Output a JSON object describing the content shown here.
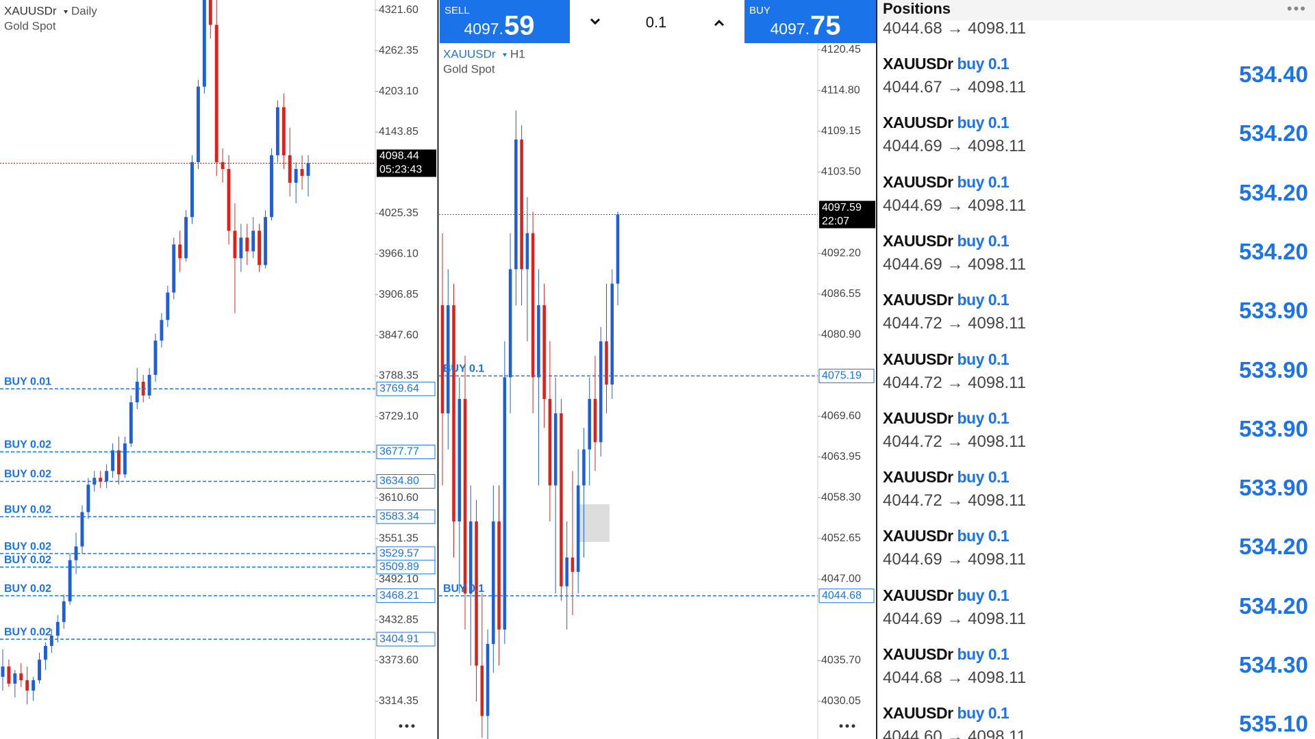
{
  "left_chart": {
    "symbol": "XAUUSDr",
    "timeframe": "Daily",
    "description": "Gold Spot",
    "ylim": [
      3259.4,
      4336.25
    ],
    "yticks": [
      {
        "value": 4321.6,
        "label": "4321.60"
      },
      {
        "value": 4262.35,
        "label": "4262.35"
      },
      {
        "value": 4203.1,
        "label": "4203.10"
      },
      {
        "value": 4143.85,
        "label": "4143.85"
      },
      {
        "value": 4025.35,
        "label": "4025.35"
      },
      {
        "value": 3966.1,
        "label": "3966.10"
      },
      {
        "value": 3906.85,
        "label": "3906.85"
      },
      {
        "value": 3847.6,
        "label": "3847.60"
      },
      {
        "value": 3788.35,
        "label": "3788.35"
      },
      {
        "value": 3729.1,
        "label": "3729.10"
      },
      {
        "value": 3610.6,
        "label": "3610.60"
      },
      {
        "value": 3551.35,
        "label": "3551.35"
      },
      {
        "value": 3492.1,
        "label": "3492.10"
      },
      {
        "value": 3432.85,
        "label": "3432.85"
      },
      {
        "value": 3373.6,
        "label": "3373.60"
      },
      {
        "value": 3314.35,
        "label": "3314.35"
      }
    ],
    "current": {
      "price": 4098.44,
      "time": "05:23:43"
    },
    "orders": [
      {
        "label": "BUY 0.01",
        "price": 3769.64
      },
      {
        "label": "BUY 0.02",
        "price": 3677.77
      },
      {
        "label": "BUY 0.02",
        "price": 3634.8,
        "price_label": "3634.80"
      },
      {
        "label": "BUY 0.02",
        "price": 3583.34
      },
      {
        "label": "BUY 0.02",
        "price": 3529.57
      },
      {
        "label": "BUY 0.02",
        "price": 3509.89
      },
      {
        "label": "BUY 0.02",
        "price": 3468.21
      },
      {
        "label": "BUY 0.02",
        "price": 3404.91
      }
    ],
    "candles": [
      [
        3350,
        3390,
        3330,
        3365
      ],
      [
        3365,
        3375,
        3335,
        3340
      ],
      [
        3340,
        3360,
        3320,
        3355
      ],
      [
        3355,
        3370,
        3335,
        3345
      ],
      [
        3345,
        3365,
        3310,
        3330
      ],
      [
        3330,
        3350,
        3315,
        3345
      ],
      [
        3345,
        3385,
        3340,
        3375
      ],
      [
        3375,
        3400,
        3360,
        3395
      ],
      [
        3395,
        3420,
        3385,
        3410
      ],
      [
        3410,
        3440,
        3400,
        3430
      ],
      [
        3430,
        3470,
        3420,
        3460
      ],
      [
        3460,
        3530,
        3455,
        3520
      ],
      [
        3520,
        3560,
        3500,
        3540
      ],
      [
        3540,
        3600,
        3530,
        3590
      ],
      [
        3590,
        3640,
        3580,
        3630
      ],
      [
        3630,
        3650,
        3620,
        3640
      ],
      [
        3640,
        3650,
        3625,
        3635
      ],
      [
        3635,
        3660,
        3625,
        3650
      ],
      [
        3650,
        3690,
        3640,
        3680
      ],
      [
        3680,
        3700,
        3630,
        3645
      ],
      [
        3645,
        3700,
        3640,
        3690
      ],
      [
        3690,
        3760,
        3685,
        3750
      ],
      [
        3750,
        3800,
        3740,
        3780
      ],
      [
        3780,
        3790,
        3750,
        3760
      ],
      [
        3760,
        3800,
        3755,
        3790
      ],
      [
        3790,
        3850,
        3780,
        3840
      ],
      [
        3840,
        3880,
        3830,
        3870
      ],
      [
        3870,
        3920,
        3860,
        3910
      ],
      [
        3910,
        3990,
        3900,
        3980
      ],
      [
        3980,
        4000,
        3940,
        3960
      ],
      [
        3960,
        4030,
        3955,
        4020
      ],
      [
        4020,
        4110,
        4010,
        4100
      ],
      [
        4100,
        4220,
        4090,
        4210
      ],
      [
        4210,
        4360,
        4200,
        4340
      ],
      [
        4340,
        4380,
        4280,
        4300
      ],
      [
        4300,
        4340,
        4080,
        4100
      ],
      [
        4100,
        4120,
        4070,
        4090
      ],
      [
        4090,
        4110,
        3980,
        4000
      ],
      [
        4000,
        4040,
        3880,
        3960
      ],
      [
        3960,
        4010,
        3940,
        3990
      ],
      [
        3990,
        4010,
        3950,
        3970
      ],
      [
        3970,
        4020,
        3960,
        4000
      ],
      [
        4000,
        4010,
        3940,
        3950
      ],
      [
        3950,
        4030,
        3945,
        4020
      ],
      [
        4020,
        4120,
        4015,
        4110
      ],
      [
        4110,
        4190,
        4100,
        4180
      ],
      [
        4180,
        4200,
        4090,
        4110
      ],
      [
        4110,
        4150,
        4050,
        4070
      ],
      [
        4070,
        4100,
        4040,
        4090
      ],
      [
        4090,
        4110,
        4060,
        4080
      ],
      [
        4080,
        4110,
        4050,
        4098.44
      ]
    ]
  },
  "trade_bar": {
    "sell_label": "SELL",
    "sell_main": "4097.",
    "sell_big": "59",
    "volume": "0.1",
    "buy_label": "BUY",
    "buy_main": "4097.",
    "buy_big": "75"
  },
  "middle_chart": {
    "symbol": "XAUUSDr",
    "timeframe": "H1",
    "description": "Gold Spot",
    "ylim": [
      4024.81,
      4121.38
    ],
    "yticks": [
      {
        "value": 4120.45,
        "label": "4120.45"
      },
      {
        "value": 4114.8,
        "label": "4114.80"
      },
      {
        "value": 4109.15,
        "label": "4109.15"
      },
      {
        "value": 4103.5,
        "label": "4103.50"
      },
      {
        "value": 4092.2,
        "label": "4092.20"
      },
      {
        "value": 4086.55,
        "label": "4086.55"
      },
      {
        "value": 4080.9,
        "label": "4080.90"
      },
      {
        "value": 4069.6,
        "label": "4069.60"
      },
      {
        "value": 4063.95,
        "label": "4063.95"
      },
      {
        "value": 4058.3,
        "label": "4058.30"
      },
      {
        "value": 4052.65,
        "label": "4052.65"
      },
      {
        "value": 4047,
        "label": "4047.00"
      },
      {
        "value": 4035.7,
        "label": "4035.70"
      },
      {
        "value": 4030.05,
        "label": "4030.05"
      }
    ],
    "current": {
      "price": 4097.59,
      "time": "22:07"
    },
    "orders": [
      {
        "label": "BUY 0.1",
        "price": 4075.19
      },
      {
        "label": "BUY 0.1",
        "price": 4044.68
      }
    ],
    "candles": [
      [
        4085,
        4095,
        4060,
        4070
      ],
      [
        4070,
        4090,
        4065,
        4085
      ],
      [
        4085,
        4088,
        4050,
        4055
      ],
      [
        4055,
        4075,
        4045,
        4072
      ],
      [
        4072,
        4078,
        4040,
        4045
      ],
      [
        4045,
        4060,
        4035,
        4055
      ],
      [
        4055,
        4058,
        4030,
        4035
      ],
      [
        4035,
        4045,
        4025,
        4028
      ],
      [
        4028,
        4040,
        4022,
        4038
      ],
      [
        4038,
        4060,
        4034,
        4055
      ],
      [
        4055,
        4060,
        4035,
        4040
      ],
      [
        4040,
        4080,
        4038,
        4075
      ],
      [
        4075,
        4095,
        4070,
        4090
      ],
      [
        4090,
        4112,
        4085,
        4108
      ],
      [
        4108,
        4110,
        4085,
        4090
      ],
      [
        4090,
        4100,
        4080,
        4095
      ],
      [
        4095,
        4098,
        4070,
        4075
      ],
      [
        4075,
        4090,
        4060,
        4085
      ],
      [
        4085,
        4088,
        4068,
        4072
      ],
      [
        4072,
        4080,
        4055,
        4060
      ],
      [
        4060,
        4075,
        4045,
        4070
      ],
      [
        4070,
        4072,
        4044,
        4046
      ],
      [
        4046,
        4055,
        4040,
        4050
      ],
      [
        4050,
        4062,
        4042,
        4048
      ],
      [
        4048,
        4065,
        4045,
        4060
      ],
      [
        4060,
        4068,
        4050,
        4065
      ],
      [
        4065,
        4075,
        4060,
        4072
      ],
      [
        4072,
        4078,
        4062,
        4066
      ],
      [
        4066,
        4082,
        4064,
        4080
      ],
      [
        4080,
        4088,
        4070,
        4074
      ],
      [
        4074,
        4090,
        4072,
        4088
      ],
      [
        4088,
        4098,
        4085,
        4097.59
      ]
    ]
  },
  "positions": {
    "title": "Positions",
    "arrow": "→",
    "first_row": {
      "open": "4044.68",
      "current": "4098.11"
    },
    "rows": [
      {
        "symbol": "XAUUSDr",
        "side": "buy 0.1",
        "open": "4044.67",
        "current": "4098.11",
        "profit": "534.40"
      },
      {
        "symbol": "XAUUSDr",
        "side": "buy 0.1",
        "open": "4044.69",
        "current": "4098.11",
        "profit": "534.20"
      },
      {
        "symbol": "XAUUSDr",
        "side": "buy 0.1",
        "open": "4044.69",
        "current": "4098.11",
        "profit": "534.20"
      },
      {
        "symbol": "XAUUSDr",
        "side": "buy 0.1",
        "open": "4044.69",
        "current": "4098.11",
        "profit": "534.20"
      },
      {
        "symbol": "XAUUSDr",
        "side": "buy 0.1",
        "open": "4044.72",
        "current": "4098.11",
        "profit": "533.90"
      },
      {
        "symbol": "XAUUSDr",
        "side": "buy 0.1",
        "open": "4044.72",
        "current": "4098.11",
        "profit": "533.90"
      },
      {
        "symbol": "XAUUSDr",
        "side": "buy 0.1",
        "open": "4044.72",
        "current": "4098.11",
        "profit": "533.90"
      },
      {
        "symbol": "XAUUSDr",
        "side": "buy 0.1",
        "open": "4044.72",
        "current": "4098.11",
        "profit": "533.90"
      },
      {
        "symbol": "XAUUSDr",
        "side": "buy 0.1",
        "open": "4044.69",
        "current": "4098.11",
        "profit": "534.20"
      },
      {
        "symbol": "XAUUSDr",
        "side": "buy 0.1",
        "open": "4044.69",
        "current": "4098.11",
        "profit": "534.20"
      },
      {
        "symbol": "XAUUSDr",
        "side": "buy 0.1",
        "open": "4044.68",
        "current": "4098.11",
        "profit": "534.30"
      },
      {
        "symbol": "XAUUSDr",
        "side": "buy 0.1",
        "open": "4044.60",
        "current": "4098.11",
        "profit": "535.10"
      }
    ]
  }
}
